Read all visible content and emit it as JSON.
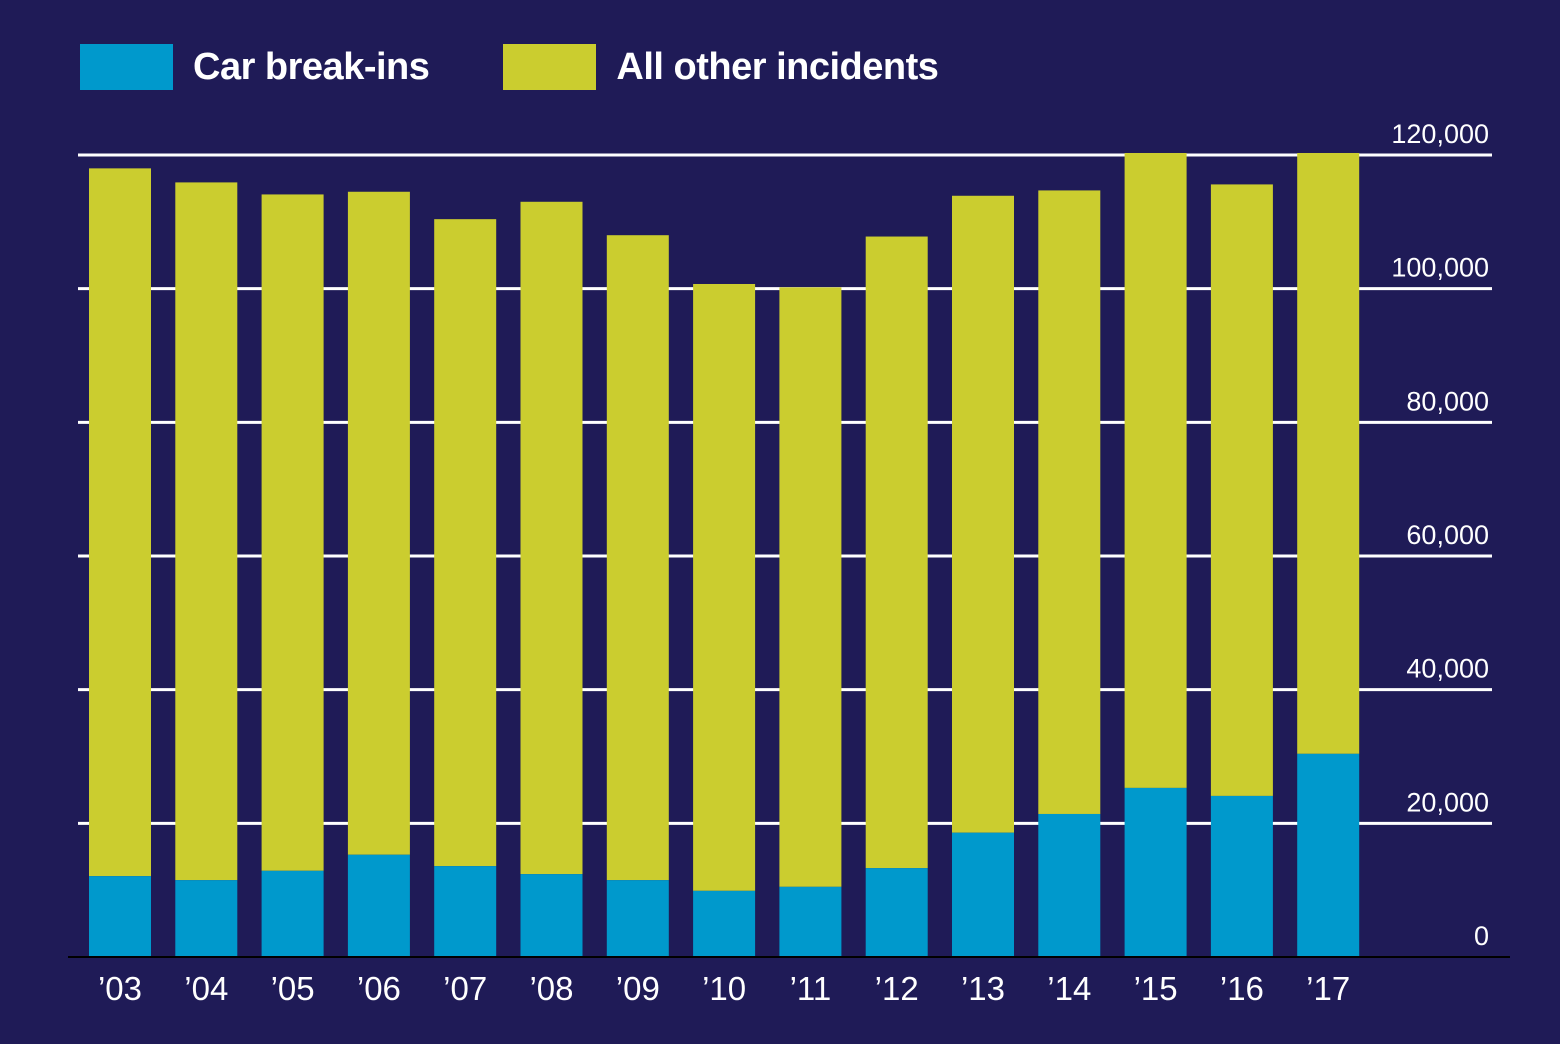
{
  "chart_data": {
    "type": "bar",
    "stacked": true,
    "categories": [
      "’03",
      "’04",
      "’05",
      "’06",
      "’07",
      "’08",
      "’09",
      "’10",
      "’11",
      "’12",
      "’13",
      "’14",
      "’15",
      "’16",
      "’17"
    ],
    "series": [
      {
        "name": "Car break-ins",
        "color": "#0099cc",
        "values": [
          12100,
          11500,
          12900,
          15300,
          13600,
          12400,
          11500,
          9900,
          10500,
          13300,
          18600,
          21400,
          25300,
          24100,
          30400
        ]
      },
      {
        "name": "All other incidents",
        "color": "#cbcd2f",
        "values": [
          105900,
          104400,
          101200,
          99200,
          96800,
          100600,
          96500,
          90800,
          89700,
          94500,
          95300,
          93300,
          95000,
          91500,
          89900
        ]
      }
    ],
    "ylim": [
      0,
      120000
    ],
    "y_ticks": [
      0,
      20000,
      40000,
      60000,
      80000,
      100000,
      120000
    ],
    "y_tick_labels": [
      "0",
      "20,000",
      "40,000",
      "60,000",
      "80,000",
      "100,000",
      "120,000"
    ],
    "y_axis_position": "right",
    "grid": true,
    "legend_position": "top-left"
  }
}
